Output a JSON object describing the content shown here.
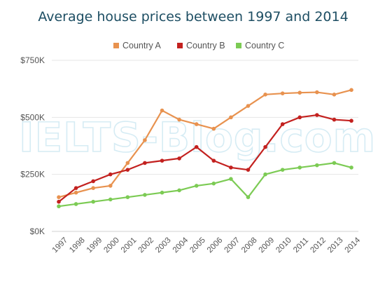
{
  "chart_data": {
    "type": "line",
    "title": "Average house prices between 1997 and 2014",
    "xlabel": "",
    "ylabel": "",
    "x": [
      "1997",
      "1998",
      "1999",
      "2000",
      "2001",
      "2002",
      "2003",
      "2004",
      "2005",
      "2006",
      "2007",
      "2008",
      "2009",
      "2010",
      "2011",
      "2012",
      "2013",
      "2014"
    ],
    "yticks": [
      0,
      250,
      500,
      750
    ],
    "ytick_labels": [
      "$0K",
      "$250K",
      "$500K",
      "$750K"
    ],
    "ylim": [
      0,
      750
    ],
    "grid": true,
    "legend_position": "top-center",
    "watermark": "IELTS-Blog.com",
    "series": [
      {
        "name": "Country A",
        "color": "#e8924f",
        "values": [
          150,
          170,
          190,
          200,
          300,
          400,
          530,
          490,
          470,
          450,
          500,
          550,
          600,
          605,
          608,
          610,
          600,
          620
        ]
      },
      {
        "name": "Country B",
        "color": "#c3211f",
        "values": [
          130,
          190,
          220,
          250,
          270,
          300,
          310,
          320,
          370,
          310,
          280,
          270,
          370,
          470,
          500,
          510,
          490,
          485
        ]
      },
      {
        "name": "Country C",
        "color": "#7ccb54",
        "values": [
          110,
          120,
          130,
          140,
          150,
          160,
          170,
          180,
          200,
          210,
          230,
          150,
          250,
          270,
          280,
          290,
          300,
          280
        ]
      }
    ]
  }
}
